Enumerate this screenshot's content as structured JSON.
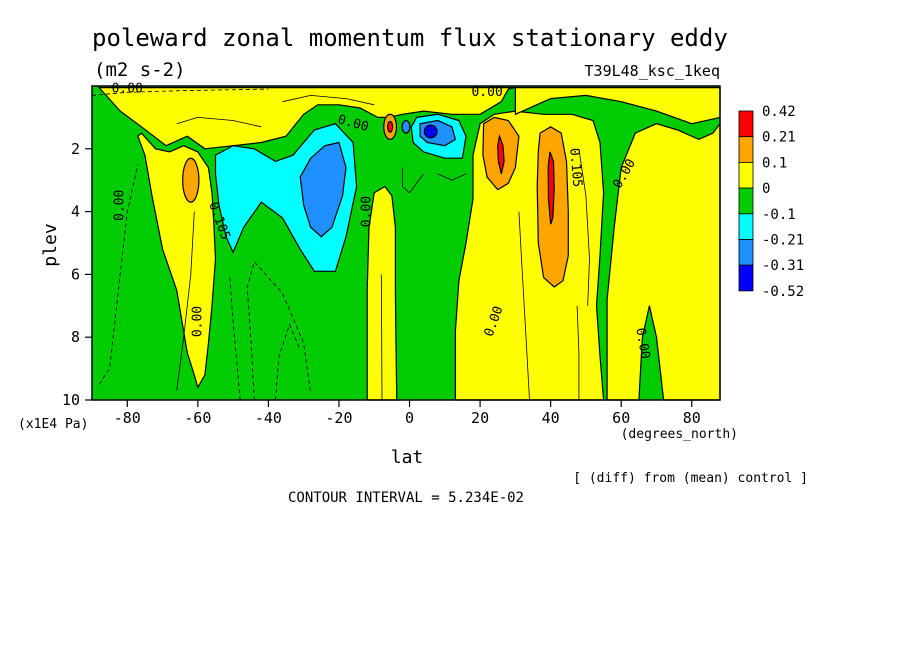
{
  "chart_data": {
    "type": "heatmap",
    "title": "poleward zonal momentum flux stationary eddy",
    "units": "(m2 s-2)",
    "run_label": "T39L48_ksc_1keq",
    "xlabel": "lat",
    "x_units": "(degrees_north)",
    "ylabel": "plev",
    "y_units": "(x1E4 Pa)",
    "xlim": [
      -90,
      88
    ],
    "ylim": [
      10,
      0
    ],
    "x_ticks": [
      "-80",
      "-60",
      "-40",
      "-20",
      "0",
      "20",
      "40",
      "60",
      "80"
    ],
    "x_tick_values": [
      -80,
      -60,
      -40,
      -20,
      0,
      20,
      40,
      60,
      80
    ],
    "y_ticks": [
      "2",
      "4",
      "6",
      "8",
      "10"
    ],
    "y_tick_values": [
      2,
      4,
      6,
      8,
      10
    ],
    "footer_note": "[ (diff) from (mean) control ]",
    "contour_interval": "CONTOUR INTERVAL = 5.234E-02",
    "colorbar": {
      "levels": [
        "0.42",
        "0.21",
        "0.1",
        "0",
        "-0.1",
        "-0.21",
        "-0.31",
        "-0.52"
      ],
      "colors": [
        "#ff0000",
        "#ffa500",
        "#ffff00",
        "#00cc00",
        "#00ffff",
        "#1e90ff",
        "#0000ff"
      ]
    },
    "contour_labels": [
      {
        "text": "0.00",
        "lat": -82,
        "plev": 3.8,
        "rot": -90
      },
      {
        "text": "0.00",
        "lat": -60,
        "plev": 7.5,
        "rot": -90
      },
      {
        "text": "0.105",
        "lat": -54,
        "plev": 4.3,
        "rot": 70
      },
      {
        "text": "0.00",
        "lat": -16,
        "plev": 1.2,
        "rot": 15
      },
      {
        "text": "0.00",
        "lat": -12,
        "plev": 4.0,
        "rot": -90
      },
      {
        "text": "0.00",
        "lat": 22,
        "plev": 0.2,
        "rot": 0
      },
      {
        "text": "0.00",
        "lat": 24,
        "plev": 7.5,
        "rot": -70
      },
      {
        "text": "0.105",
        "lat": 47,
        "plev": 2.6,
        "rot": 85
      },
      {
        "text": "0.00",
        "lat": 61,
        "plev": 2.8,
        "rot": -60
      },
      {
        "text": "0.00",
        "lat": 66,
        "plev": 8.2,
        "rot": 80
      },
      {
        "text": "0.00",
        "lat": -80,
        "plev": 0.1,
        "rot": 0
      }
    ]
  }
}
